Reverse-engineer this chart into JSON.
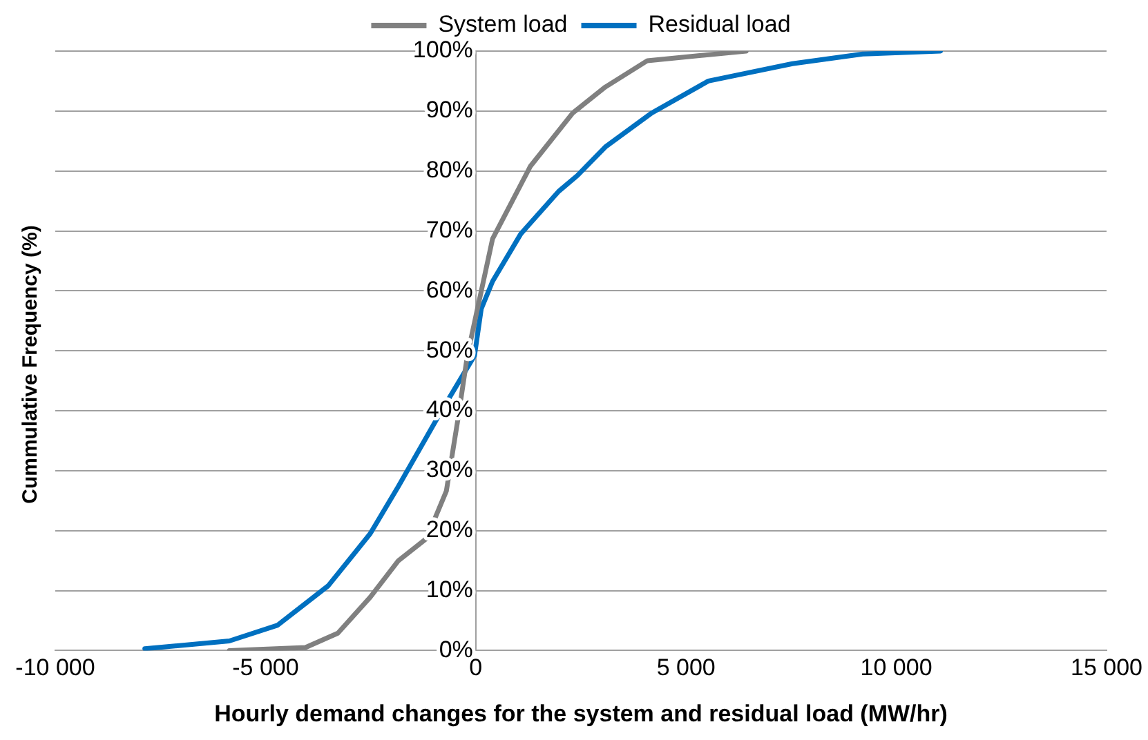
{
  "chart_data": {
    "type": "line",
    "xlabel": "Hourly demand changes for the system and residual load (MW/hr)",
    "ylabel": "Cummulative Frequency (%)",
    "xlim": [
      -10000,
      15000
    ],
    "xticks": [
      {
        "value": -10000,
        "label": "-10 000"
      },
      {
        "value": -5000,
        "label": "-5 000"
      },
      0,
      {
        "value": 5000,
        "label": "5 000"
      },
      {
        "value": 10000,
        "label": "10 000"
      },
      {
        "value": 15000,
        "label": "15 000"
      }
    ],
    "ylim": [
      0,
      100
    ],
    "yticks": [
      {
        "value": 0,
        "label": "0%"
      },
      {
        "value": 10,
        "label": "10%"
      },
      {
        "value": 20,
        "label": "20%"
      },
      {
        "value": 30,
        "label": "30%"
      },
      {
        "value": 40,
        "label": "40%"
      },
      {
        "value": 50,
        "label": "50%"
      },
      {
        "value": 60,
        "label": "60%"
      },
      {
        "value": 70,
        "label": "70%"
      },
      {
        "value": 80,
        "label": "80%"
      },
      {
        "value": 90,
        "label": "90%"
      },
      {
        "value": 100,
        "label": "100%"
      }
    ],
    "grid": "y",
    "legend": "top",
    "marker": "none",
    "line_style": "solid",
    "series": [
      {
        "name": "System load",
        "color": "#808080",
        "x": [
          -5860,
          -4050,
          -3280,
          -2510,
          -1840,
          -1170,
          -700,
          -440,
          -200,
          70,
          400,
          1300,
          2310,
          3080,
          4080,
          6430
        ],
        "values": [
          0,
          0.5,
          2.9,
          8.9,
          15,
          18.7,
          26.6,
          37.9,
          49.2,
          58,
          68.7,
          80.8,
          89.7,
          94,
          98.4,
          100
        ]
      },
      {
        "name": "Residual load",
        "color": "#0070c0",
        "x": [
          -7870,
          -5860,
          -4720,
          -3510,
          -2510,
          -1840,
          -840,
          -30,
          130,
          400,
          1070,
          1970,
          2410,
          3080,
          4190,
          5530,
          7530,
          9200,
          11050
        ],
        "values": [
          0.3,
          1.6,
          4.2,
          10.8,
          19.5,
          27.4,
          39.7,
          49.2,
          57,
          61.6,
          69.5,
          76.6,
          79.2,
          84,
          89.7,
          95,
          97.9,
          99.5,
          100
        ]
      }
    ]
  }
}
